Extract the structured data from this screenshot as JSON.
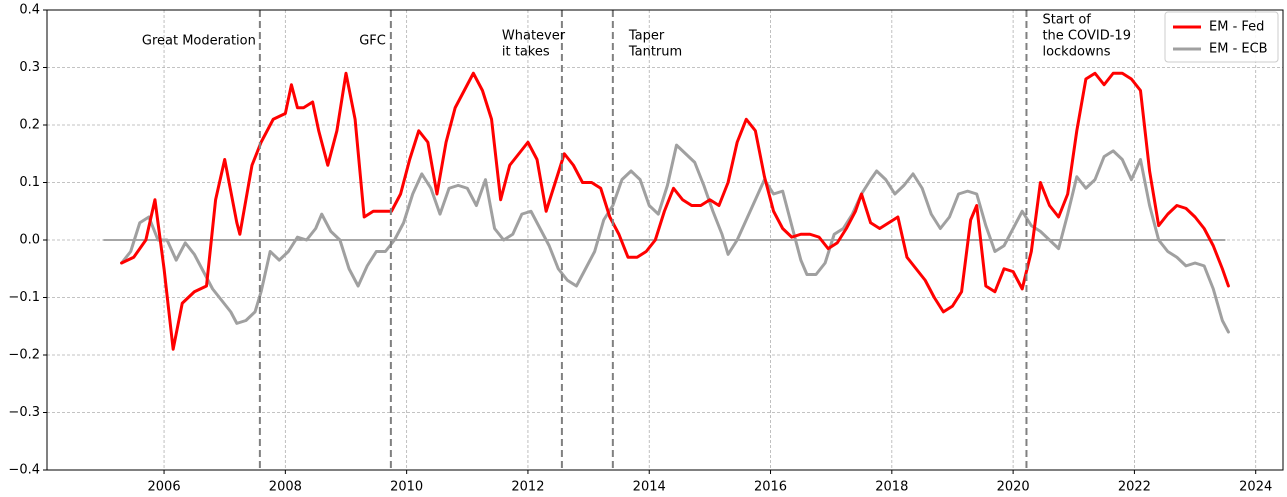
{
  "chart_data": {
    "type": "line",
    "xlim": [
      2004.07,
      2024.45
    ],
    "ylim": [
      -0.4,
      0.4
    ],
    "xticks": [
      2006,
      2008,
      2010,
      2012,
      2014,
      2016,
      2018,
      2020,
      2022,
      2024
    ],
    "yticks": [
      {
        "value": -0.4,
        "label": "−0.4"
      },
      {
        "value": -0.3,
        "label": "−0.3"
      },
      {
        "value": -0.2,
        "label": "−0.2"
      },
      {
        "value": -0.1,
        "label": "−0.1"
      },
      {
        "value": 0,
        "label": "0.0"
      },
      0.1,
      0.2,
      0.3,
      0.4
    ],
    "grid": true,
    "legend": "upper right",
    "reference_line": {
      "value": 0,
      "x": [
        2005,
        2023.5
      ],
      "color": "#888888"
    },
    "events": [
      {
        "x": 2007.58,
        "label": [
          "Great Moderation"
        ]
      },
      {
        "x": 2009.74,
        "label": [
          "GFC"
        ]
      },
      {
        "x": 2012.56,
        "label": [
          "Whatever",
          "it takes"
        ]
      },
      {
        "x": 2013.4,
        "label": [
          "Taper",
          "Tantrum"
        ]
      },
      {
        "x": 2020.22,
        "label": [
          "Start of",
          "the COVID-19",
          "lockdowns"
        ]
      }
    ],
    "series": [
      {
        "name": "EM - Fed",
        "color": "#ff0000",
        "x": [
          2005.3,
          2005.5,
          2005.7,
          2005.85,
          2006.0,
          2006.15,
          2006.3,
          2006.5,
          2006.7,
          2006.85,
          2007.0,
          2007.2,
          2007.25,
          2007.45,
          2007.6,
          2007.8,
          2008.0,
          2008.1,
          2008.2,
          2008.3,
          2008.45,
          2008.55,
          2008.7,
          2008.85,
          2009.0,
          2009.15,
          2009.3,
          2009.45,
          2009.6,
          2009.75,
          2009.9,
          2010.05,
          2010.2,
          2010.35,
          2010.5,
          2010.65,
          2010.8,
          2010.95,
          2011.1,
          2011.25,
          2011.4,
          2011.55,
          2011.7,
          2011.85,
          2012.0,
          2012.15,
          2012.3,
          2012.45,
          2012.6,
          2012.75,
          2012.9,
          2013.05,
          2013.2,
          2013.35,
          2013.5,
          2013.65,
          2013.8,
          2013.95,
          2014.1,
          2014.25,
          2014.4,
          2014.55,
          2014.7,
          2014.85,
          2015.0,
          2015.15,
          2015.3,
          2015.45,
          2015.6,
          2015.75,
          2015.9,
          2016.05,
          2016.2,
          2016.35,
          2016.5,
          2016.65,
          2016.8,
          2016.95,
          2017.1,
          2017.25,
          2017.4,
          2017.5,
          2017.65,
          2017.8,
          2017.95,
          2018.1,
          2018.25,
          2018.4,
          2018.55,
          2018.7,
          2018.85,
          2019.0,
          2019.15,
          2019.3,
          2019.4,
          2019.55,
          2019.7,
          2019.85,
          2020.0,
          2020.15,
          2020.3,
          2020.45,
          2020.6,
          2020.75,
          2020.9,
          2021.05,
          2021.2,
          2021.35,
          2021.5,
          2021.65,
          2021.8,
          2021.95,
          2022.1,
          2022.25,
          2022.4,
          2022.55,
          2022.7,
          2022.85,
          2023.0,
          2023.15,
          2023.3,
          2023.45,
          2023.55
        ],
        "values": [
          -0.04,
          -0.03,
          0.0,
          0.07,
          -0.05,
          -0.19,
          -0.11,
          -0.09,
          -0.08,
          0.07,
          0.14,
          0.03,
          0.01,
          0.13,
          0.17,
          0.21,
          0.22,
          0.27,
          0.23,
          0.23,
          0.24,
          0.19,
          0.13,
          0.19,
          0.29,
          0.21,
          0.04,
          0.05,
          0.05,
          0.05,
          0.08,
          0.14,
          0.19,
          0.17,
          0.08,
          0.17,
          0.23,
          0.26,
          0.29,
          0.26,
          0.21,
          0.07,
          0.13,
          0.15,
          0.17,
          0.14,
          0.05,
          0.1,
          0.15,
          0.13,
          0.1,
          0.1,
          0.09,
          0.04,
          0.01,
          -0.03,
          -0.03,
          -0.02,
          0.0,
          0.05,
          0.09,
          0.07,
          0.06,
          0.06,
          0.07,
          0.06,
          0.1,
          0.17,
          0.21,
          0.19,
          0.11,
          0.05,
          0.02,
          0.005,
          0.01,
          0.01,
          0.005,
          -0.015,
          -0.005,
          0.02,
          0.05,
          0.08,
          0.03,
          0.02,
          0.03,
          0.04,
          -0.03,
          -0.05,
          -0.07,
          -0.1,
          -0.125,
          -0.115,
          -0.09,
          0.035,
          0.06,
          -0.08,
          -0.09,
          -0.05,
          -0.055,
          -0.085,
          -0.02,
          0.1,
          0.06,
          0.04,
          0.08,
          0.19,
          0.28,
          0.29,
          0.27,
          0.29,
          0.29,
          0.28,
          0.26,
          0.12,
          0.025,
          0.045,
          0.06,
          0.055,
          0.04,
          0.02,
          -0.01,
          -0.05,
          -0.08
        ]
      },
      {
        "name": "EM - ECB",
        "color": "#a0a0a0",
        "x": [
          2005.3,
          2005.45,
          2005.6,
          2005.75,
          2005.9,
          2006.05,
          2006.2,
          2006.35,
          2006.5,
          2006.65,
          2006.8,
          2006.95,
          2007.1,
          2007.2,
          2007.35,
          2007.5,
          2007.6,
          2007.75,
          2007.9,
          2008.05,
          2008.2,
          2008.35,
          2008.5,
          2008.6,
          2008.75,
          2008.9,
          2009.05,
          2009.2,
          2009.35,
          2009.5,
          2009.65,
          2009.8,
          2009.95,
          2010.1,
          2010.25,
          2010.4,
          2010.55,
          2010.7,
          2010.85,
          2011.0,
          2011.15,
          2011.3,
          2011.45,
          2011.6,
          2011.75,
          2011.9,
          2012.05,
          2012.2,
          2012.35,
          2012.5,
          2012.65,
          2012.8,
          2012.95,
          2013.1,
          2013.25,
          2013.4,
          2013.55,
          2013.7,
          2013.85,
          2014.0,
          2014.15,
          2014.3,
          2014.45,
          2014.6,
          2014.75,
          2014.9,
          2015.05,
          2015.2,
          2015.3,
          2015.45,
          2015.6,
          2015.75,
          2015.9,
          2016.05,
          2016.2,
          2016.35,
          2016.5,
          2016.6,
          2016.75,
          2016.9,
          2017.05,
          2017.2,
          2017.35,
          2017.5,
          2017.65,
          2017.75,
          2017.9,
          2018.05,
          2018.2,
          2018.35,
          2018.5,
          2018.65,
          2018.8,
          2018.95,
          2019.1,
          2019.25,
          2019.4,
          2019.55,
          2019.7,
          2019.85,
          2020.0,
          2020.15,
          2020.3,
          2020.45,
          2020.6,
          2020.75,
          2020.9,
          2021.05,
          2021.2,
          2021.35,
          2021.5,
          2021.65,
          2021.8,
          2021.95,
          2022.1,
          2022.25,
          2022.4,
          2022.55,
          2022.7,
          2022.85,
          2023.0,
          2023.15,
          2023.3,
          2023.45,
          2023.55
        ],
        "values": [
          -0.04,
          -0.02,
          0.03,
          0.04,
          0.0,
          0.0,
          -0.035,
          -0.005,
          -0.025,
          -0.055,
          -0.085,
          -0.105,
          -0.125,
          -0.145,
          -0.14,
          -0.125,
          -0.09,
          -0.02,
          -0.035,
          -0.02,
          0.005,
          0.0,
          0.02,
          0.045,
          0.015,
          0.0,
          -0.05,
          -0.08,
          -0.045,
          -0.02,
          -0.02,
          0.0,
          0.03,
          0.08,
          0.115,
          0.09,
          0.045,
          0.09,
          0.095,
          0.09,
          0.06,
          0.105,
          0.02,
          0.0,
          0.01,
          0.045,
          0.05,
          0.02,
          -0.01,
          -0.05,
          -0.07,
          -0.08,
          -0.05,
          -0.02,
          0.035,
          0.06,
          0.105,
          0.12,
          0.105,
          0.06,
          0.045,
          0.095,
          0.165,
          0.15,
          0.135,
          0.095,
          0.05,
          0.01,
          -0.025,
          0.0,
          0.035,
          0.07,
          0.105,
          0.08,
          0.085,
          0.025,
          -0.035,
          -0.06,
          -0.06,
          -0.04,
          0.01,
          0.02,
          0.045,
          0.08,
          0.105,
          0.12,
          0.105,
          0.08,
          0.095,
          0.115,
          0.09,
          0.045,
          0.02,
          0.04,
          0.08,
          0.085,
          0.08,
          0.025,
          -0.02,
          -0.01,
          0.02,
          0.05,
          0.025,
          0.015,
          0.0,
          -0.015,
          0.045,
          0.11,
          0.09,
          0.105,
          0.145,
          0.155,
          0.14,
          0.105,
          0.14,
          0.06,
          0.0,
          -0.02,
          -0.03,
          -0.045,
          -0.04,
          -0.045,
          -0.085,
          -0.14,
          -0.16
        ]
      }
    ]
  }
}
